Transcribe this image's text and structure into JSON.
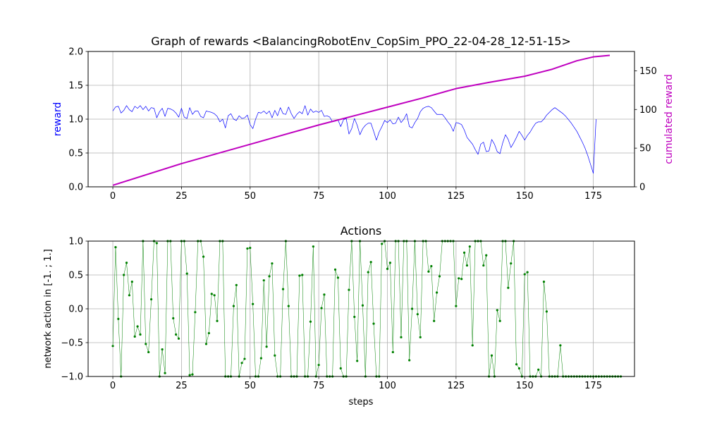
{
  "chart_data": [
    {
      "type": "line",
      "title": "Graph of rewards <BalancingRobotEnv_CopSim_PPO_22-04-28_12-51-15>",
      "xlabel": "",
      "ylabel": "reward",
      "y2label": "cumulated reward",
      "xlim": [
        -9,
        190
      ],
      "ylim": [
        0,
        2.0
      ],
      "y2lim": [
        0,
        175
      ],
      "xticks": [
        "0",
        "25",
        "50",
        "75",
        "100",
        "125",
        "150",
        "175"
      ],
      "yticks": [
        "0.0",
        "0.5",
        "1.0",
        "1.5",
        "2.0"
      ],
      "y2ticks": [
        "0",
        "50",
        "100",
        "150"
      ],
      "grid": true,
      "colors": {
        "reward": "#0000ff",
        "cumulated": "#bf00bf"
      },
      "series": [
        {
          "axis": "left",
          "values": [
            1.12,
            1.18,
            1.19,
            1.09,
            1.13,
            1.2,
            1.14,
            1.11,
            1.19,
            1.16,
            1.2,
            1.14,
            1.19,
            1.12,
            1.17,
            1.16,
            1.02,
            1.11,
            1.16,
            1.04,
            1.16,
            1.15,
            1.13,
            1.09,
            1.03,
            1.16,
            1.03,
            1.01,
            1.17,
            1.07,
            1.12,
            1.12,
            1.04,
            1.02,
            1.12,
            1.11,
            1.1,
            1.08,
            1.04,
            0.96,
            1.0,
            0.87,
            1.05,
            1.08,
            1.0,
            0.98,
            1.05,
            1.01,
            1.02,
            1.06,
            0.92,
            0.86,
            1.0,
            1.1,
            1.09,
            1.12,
            1.08,
            1.12,
            1.02,
            1.13,
            1.05,
            1.17,
            1.08,
            1.07,
            1.18,
            1.08,
            1.01,
            1.07,
            1.11,
            1.08,
            1.2,
            1.06,
            1.15,
            1.1,
            1.12,
            1.1,
            1.13,
            1.04,
            1.05,
            1.03,
            0.96,
            0.97,
            0.99,
            0.89,
            0.99,
            1.01,
            0.78,
            0.86,
            1.01,
            0.91,
            0.77,
            0.86,
            0.91,
            0.94,
            0.94,
            0.82,
            0.69,
            0.81,
            0.89,
            0.98,
            0.95,
            0.99,
            0.93,
            0.94,
            1.03,
            0.95,
            1.0,
            1.08,
            0.89,
            0.87,
            0.95,
            1.01,
            1.11,
            1.16,
            1.18,
            1.19,
            1.17,
            1.12,
            1.07,
            1.07,
            1.07,
            1.02,
            0.96,
            0.91,
            0.82,
            0.95,
            0.94,
            0.92,
            0.84,
            0.73,
            0.68,
            0.63,
            0.55,
            0.48,
            0.63,
            0.66,
            0.52,
            0.53,
            0.7,
            0.63,
            0.52,
            0.49,
            0.65,
            0.77,
            0.7,
            0.58,
            0.65,
            0.73,
            0.82,
            0.76,
            0.69,
            0.76,
            0.81,
            0.88,
            0.94,
            0.96,
            0.96,
            1.0,
            1.06,
            1.1,
            1.14,
            1.17,
            1.14,
            1.11,
            1.08,
            1.04,
            0.99,
            0.94,
            0.88,
            0.82,
            0.74,
            0.66,
            0.57,
            0.46,
            0.33,
            0.2,
            1.0
          ]
        },
        {
          "axis": "right",
          "x": [
            0,
            25,
            50,
            75,
            100,
            113,
            125,
            137,
            150,
            160,
            169,
            175,
            181
          ],
          "values": [
            2,
            30,
            55,
            80,
            103,
            115,
            127,
            135,
            143,
            152,
            163,
            168,
            170
          ]
        }
      ]
    },
    {
      "type": "line",
      "title": "Actions",
      "xlabel": "steps",
      "ylabel": "network action in [-1. ; 1.]",
      "xlim": [
        -9,
        190
      ],
      "ylim": [
        -1.0,
        1.0
      ],
      "xticks": [
        "0",
        "25",
        "50",
        "75",
        "100",
        "125",
        "150",
        "175"
      ],
      "yticks": [
        "−1.0",
        "−0.5",
        "0.0",
        "0.5",
        "1.0"
      ],
      "grid": true,
      "colors": {
        "actions": "#008000"
      },
      "series": [
        {
          "values": [
            -0.55,
            0.91,
            -0.15,
            -1.0,
            0.5,
            0.68,
            0.2,
            0.4,
            -0.41,
            -0.26,
            -0.38,
            1.0,
            -0.52,
            -0.64,
            0.14,
            1.0,
            0.97,
            -1.0,
            -0.6,
            -0.95,
            1.0,
            1.0,
            -0.14,
            -0.38,
            -0.44,
            1.0,
            1.0,
            0.52,
            -0.98,
            -0.97,
            -0.05,
            1.0,
            1.0,
            0.77,
            -0.52,
            -0.36,
            0.22,
            0.2,
            -0.18,
            1.0,
            1.0,
            -1.0,
            -1.0,
            -1.0,
            0.04,
            0.35,
            -1.0,
            -0.8,
            -0.74,
            0.89,
            0.9,
            0.07,
            -1.0,
            -1.0,
            -0.73,
            0.42,
            -0.56,
            0.48,
            0.67,
            -0.69,
            -1.0,
            -1.0,
            0.29,
            1.0,
            0.04,
            -1.0,
            -1.0,
            -1.0,
            0.49,
            0.5,
            -1.0,
            -1.0,
            -0.19,
            0.92,
            -1.0,
            -0.83,
            0.01,
            0.21,
            -1.0,
            -1.0,
            -1.0,
            0.58,
            0.46,
            -0.88,
            -1.0,
            -1.0,
            0.28,
            1.0,
            -0.12,
            -0.77,
            1.0,
            0.05,
            -1.0,
            0.54,
            0.69,
            -0.22,
            -1.0,
            -1.0,
            0.96,
            1.0,
            0.59,
            0.68,
            -0.64,
            1.0,
            1.0,
            -0.42,
            1.0,
            1.0,
            -0.76,
            0.0,
            1.0,
            -0.08,
            -0.42,
            1.0,
            1.0,
            0.55,
            0.63,
            -0.18,
            0.24,
            0.48,
            1.0,
            1.0,
            1.0,
            1.0,
            1.0,
            0.04,
            0.45,
            0.44,
            0.83,
            0.64,
            0.92,
            -0.54,
            1.0,
            1.0,
            1.0,
            0.64,
            0.79,
            -1.0,
            -0.69,
            -1.0,
            -0.02,
            -0.18,
            1.0,
            1.0,
            0.31,
            0.67,
            1.0,
            -0.82,
            -0.88,
            -1.0,
            0.51,
            0.54,
            -1.0,
            -1.0,
            -1.0,
            -0.9,
            -1.0,
            0.4,
            -0.04,
            -1.0,
            -1.0,
            -1.0,
            -1.0,
            -0.54,
            -1.0,
            -1.0,
            -1.0,
            -1.0,
            -1.0,
            -1.0,
            -1.0,
            -1.0,
            -1.0,
            -1.0,
            -1.0,
            -1.0,
            -1.0,
            -1.0,
            -1.0,
            -1.0,
            -1.0,
            -1.0,
            -1.0,
            -1.0,
            -1.0,
            -1.0
          ]
        }
      ]
    }
  ]
}
